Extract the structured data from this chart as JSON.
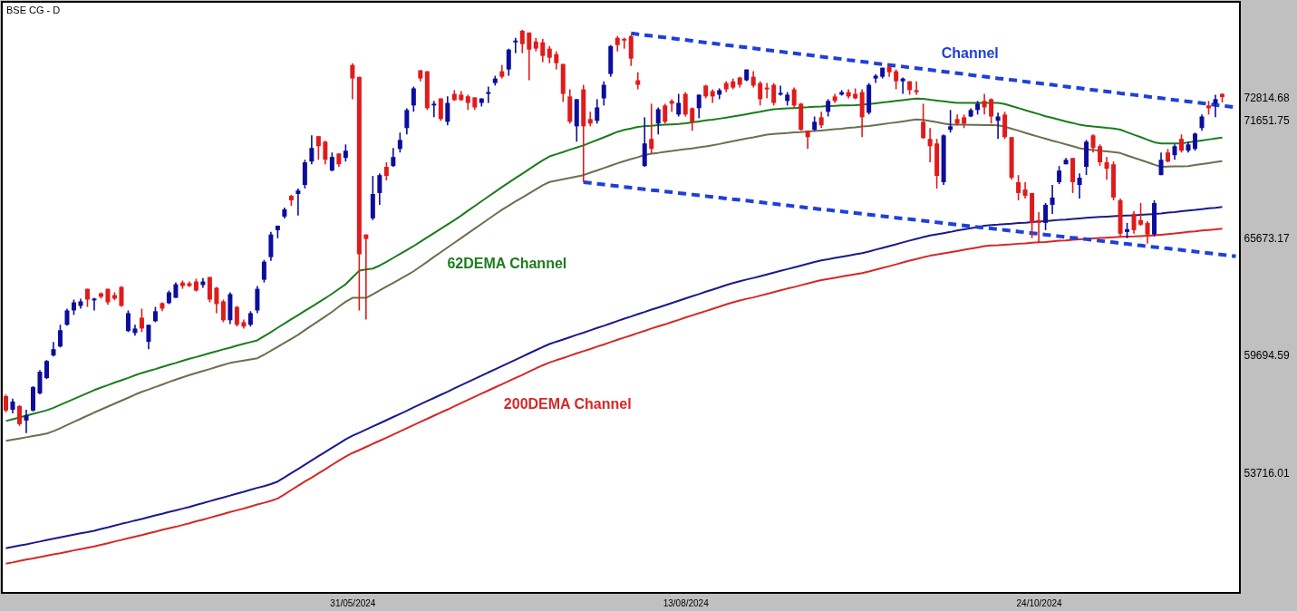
{
  "chart_data": {
    "type": "candlestick",
    "title": "BSE CG - D",
    "annotations": [
      "Channel",
      "62DEMA Channel",
      "200DEMA Channel"
    ],
    "categories": [
      null,
      null,
      null,
      null,
      null,
      null,
      null,
      null,
      null,
      null,
      null,
      null,
      null,
      null,
      null,
      null,
      null,
      null,
      null,
      null,
      null,
      null,
      null,
      null,
      null,
      null,
      null,
      null,
      null,
      null,
      null,
      null,
      null,
      null,
      null,
      null,
      null,
      null,
      null,
      null,
      null,
      null,
      null,
      null,
      null,
      null,
      null,
      null,
      null,
      null,
      null,
      "31/05/2024",
      null,
      null,
      null,
      null,
      null,
      null,
      null,
      null,
      null,
      null,
      null,
      null,
      null,
      null,
      null,
      null,
      null,
      null,
      null,
      null,
      null,
      null,
      null,
      null,
      null,
      null,
      null,
      null,
      null,
      null,
      null,
      null,
      null,
      null,
      null,
      null,
      null,
      null,
      null,
      null,
      null,
      null,
      null,
      null,
      null,
      null,
      null,
      null,
      "13/08/2024",
      null,
      null,
      null,
      null,
      null,
      null,
      null,
      null,
      null,
      null,
      null,
      null,
      null,
      null,
      null,
      null,
      null,
      null,
      null,
      null,
      null,
      null,
      null,
      null,
      null,
      null,
      null,
      null,
      null,
      null,
      null,
      null,
      null,
      null,
      null,
      null,
      null,
      null,
      null,
      null,
      null,
      null,
      null,
      null,
      null,
      null,
      null,
      null,
      null,
      null,
      null,
      "24/10/2024",
      null,
      null,
      null,
      null,
      null,
      null,
      null,
      null,
      null,
      null,
      null,
      null,
      null,
      null,
      null,
      null,
      null,
      null,
      null,
      null,
      null,
      null,
      null,
      null,
      null,
      null,
      null,
      null,
      null
    ],
    "ohlc": [
      [
        57610,
        57700,
        56790,
        56880
      ],
      [
        56920,
        57480,
        56740,
        57340
      ],
      [
        57110,
        57150,
        56100,
        56190
      ],
      [
        56370,
        56920,
        55730,
        56650
      ],
      [
        56880,
        58120,
        56830,
        58070
      ],
      [
        57750,
        58940,
        57700,
        58850
      ],
      [
        58530,
        59450,
        58480,
        59400
      ],
      [
        59680,
        60370,
        59630,
        60000
      ],
      [
        60140,
        61240,
        60090,
        60960
      ],
      [
        61240,
        62060,
        61190,
        61970
      ],
      [
        61970,
        62520,
        61740,
        62380
      ],
      [
        62200,
        62570,
        62060,
        62430
      ],
      [
        63070,
        63070,
        62150,
        62520
      ],
      [
        62480,
        62610,
        61970,
        62570
      ],
      [
        62840,
        62890,
        62570,
        62660
      ],
      [
        63070,
        63070,
        62250,
        62380
      ],
      [
        62750,
        62890,
        62480,
        62570
      ],
      [
        63160,
        63210,
        62150,
        62200
      ],
      [
        60920,
        61970,
        60870,
        61830
      ],
      [
        60820,
        61240,
        60690,
        61050
      ],
      [
        61600,
        62060,
        60870,
        61050
      ],
      [
        60370,
        61240,
        60000,
        61240
      ],
      [
        61420,
        62150,
        61370,
        61930
      ],
      [
        62340,
        62380,
        61930,
        62060
      ],
      [
        62340,
        62980,
        62290,
        62890
      ],
      [
        62610,
        63390,
        62610,
        63300
      ],
      [
        63390,
        63490,
        63070,
        63210
      ],
      [
        63350,
        63440,
        63160,
        63210
      ],
      [
        63440,
        63580,
        62930,
        62980
      ],
      [
        63260,
        63620,
        63120,
        63440
      ],
      [
        63670,
        63670,
        62380,
        62520
      ],
      [
        63120,
        63160,
        61830,
        62290
      ],
      [
        62430,
        62520,
        61370,
        61470
      ],
      [
        61470,
        62890,
        61280,
        62800
      ],
      [
        62150,
        62200,
        61150,
        61240
      ],
      [
        61370,
        61510,
        61050,
        61150
      ],
      [
        61240,
        61930,
        61150,
        61830
      ],
      [
        61970,
        63210,
        61830,
        63070
      ],
      [
        63530,
        64540,
        63390,
        64450
      ],
      [
        64680,
        65960,
        64490,
        65830
      ],
      [
        66050,
        66280,
        65640,
        66280
      ],
      [
        66740,
        67200,
        66650,
        67110
      ],
      [
        67800,
        67840,
        67290,
        67570
      ],
      [
        67890,
        68170,
        66790,
        68070
      ],
      [
        68350,
        69630,
        68170,
        69500
      ],
      [
        69540,
        70870,
        69400,
        70230
      ],
      [
        70830,
        70830,
        69630,
        70320
      ],
      [
        70550,
        70600,
        69400,
        69630
      ],
      [
        69080,
        70000,
        69040,
        69770
      ],
      [
        69950,
        69950,
        69270,
        69400
      ],
      [
        69720,
        70410,
        69540,
        70090
      ],
      [
        74450,
        74540,
        72710,
        73760
      ],
      [
        73850,
        73850,
        61970,
        64820
      ],
      [
        65830,
        65830,
        61510,
        65600
      ],
      [
        66650,
        68810,
        66560,
        67890
      ],
      [
        67940,
        68940,
        67340,
        68850
      ],
      [
        69270,
        69500,
        68580,
        68810
      ],
      [
        69310,
        70230,
        69270,
        69770
      ],
      [
        70180,
        71010,
        70000,
        70640
      ],
      [
        71240,
        72250,
        70920,
        72160
      ],
      [
        72390,
        73350,
        72070,
        73260
      ],
      [
        74180,
        74180,
        73620,
        73760
      ],
      [
        74130,
        74130,
        72160,
        72250
      ],
      [
        72390,
        72620,
        71790,
        72480
      ],
      [
        72750,
        72750,
        71610,
        71700
      ],
      [
        71560,
        72850,
        71380,
        72520
      ],
      [
        72980,
        73170,
        72620,
        72660
      ],
      [
        72940,
        73120,
        72620,
        72660
      ],
      [
        72850,
        72940,
        72160,
        72520
      ],
      [
        72800,
        72800,
        72160,
        72290
      ],
      [
        72520,
        72750,
        72340,
        72750
      ],
      [
        72980,
        73350,
        72520,
        73070
      ],
      [
        73530,
        73900,
        73400,
        73760
      ],
      [
        74130,
        74450,
        73760,
        73850
      ],
      [
        74220,
        75280,
        73900,
        75230
      ],
      [
        75600,
        75830,
        75050,
        75690
      ],
      [
        76190,
        76240,
        75050,
        75510
      ],
      [
        76100,
        76100,
        73670,
        75230
      ],
      [
        75640,
        75830,
        75140,
        75280
      ],
      [
        75600,
        75780,
        74590,
        74910
      ],
      [
        75280,
        75410,
        74540,
        74820
      ],
      [
        75000,
        75140,
        74220,
        74540
      ],
      [
        74500,
        74500,
        72570,
        72980
      ],
      [
        72850,
        73210,
        71470,
        71560
      ],
      [
        71330,
        72710,
        70550,
        72710
      ],
      [
        73210,
        73440,
        68490,
        71330
      ],
      [
        71700,
        72070,
        71330,
        71470
      ],
      [
        71610,
        72710,
        71470,
        72290
      ],
      [
        72750,
        73620,
        72390,
        73440
      ],
      [
        73990,
        75460,
        73850,
        75410
      ],
      [
        75830,
        75920,
        75140,
        75460
      ],
      [
        75780,
        75830,
        75280,
        75690
      ],
      [
        75920,
        75970,
        74400,
        74770
      ],
      [
        73670,
        74080,
        73210,
        73440
      ],
      [
        69310,
        71790,
        69270,
        70460
      ],
      [
        70690,
        72480,
        69950,
        70180
      ],
      [
        71470,
        72290,
        70920,
        72200
      ],
      [
        72390,
        72480,
        71470,
        71560
      ],
      [
        72620,
        72710,
        72070,
        72480
      ],
      [
        71930,
        72980,
        71830,
        72520
      ],
      [
        72980,
        73070,
        71830,
        71930
      ],
      [
        72250,
        72290,
        71100,
        71560
      ],
      [
        72250,
        72940,
        71740,
        72940
      ],
      [
        73400,
        73440,
        72750,
        72850
      ],
      [
        73120,
        73210,
        72520,
        72850
      ],
      [
        72940,
        73260,
        72710,
        73170
      ],
      [
        73530,
        73620,
        73070,
        73210
      ],
      [
        73620,
        73760,
        73210,
        73300
      ],
      [
        73810,
        73850,
        73300,
        73440
      ],
      [
        73670,
        74220,
        73620,
        74220
      ],
      [
        73850,
        74130,
        73300,
        73400
      ],
      [
        73530,
        73620,
        72390,
        72710
      ],
      [
        73300,
        73530,
        72750,
        73210
      ],
      [
        73440,
        73530,
        72390,
        72520
      ],
      [
        72940,
        73400,
        72890,
        73030
      ],
      [
        72620,
        73070,
        72390,
        72940
      ],
      [
        73210,
        73300,
        72290,
        72390
      ],
      [
        72480,
        72520,
        71100,
        71150
      ],
      [
        71100,
        71100,
        70180,
        70780
      ],
      [
        71150,
        71830,
        71100,
        71560
      ],
      [
        71790,
        72070,
        71240,
        71380
      ],
      [
        72070,
        72710,
        71830,
        72620
      ],
      [
        72850,
        72980,
        72520,
        72620
      ],
      [
        72940,
        73170,
        72890,
        73070
      ],
      [
        73070,
        73210,
        72750,
        72850
      ],
      [
        72980,
        73260,
        72710,
        72750
      ],
      [
        73070,
        73210,
        70780,
        71790
      ],
      [
        72020,
        73530,
        71930,
        73440
      ],
      [
        73760,
        73990,
        73530,
        73900
      ],
      [
        73850,
        74310,
        73760,
        74310
      ],
      [
        74360,
        74400,
        73850,
        74080
      ],
      [
        74130,
        74220,
        73210,
        73620
      ],
      [
        73620,
        73810,
        72980,
        73760
      ],
      [
        73620,
        73620,
        72940,
        73170
      ],
      [
        73170,
        73620,
        72940,
        73070
      ],
      [
        71560,
        72480,
        70690,
        70730
      ],
      [
        70690,
        71240,
        69500,
        70320
      ],
      [
        70460,
        70690,
        68170,
        68810
      ],
      [
        68490,
        70920,
        68350,
        70870
      ],
      [
        71150,
        72160,
        71010,
        71330
      ],
      [
        71700,
        71930,
        71380,
        71470
      ],
      [
        71790,
        71930,
        71240,
        71470
      ],
      [
        71830,
        72250,
        71790,
        72160
      ],
      [
        72160,
        72620,
        71930,
        72480
      ],
      [
        72620,
        72980,
        71930,
        72290
      ],
      [
        72710,
        72750,
        71470,
        71830
      ],
      [
        71610,
        72020,
        70690,
        71830
      ],
      [
        71930,
        72070,
        70690,
        70780
      ],
      [
        70780,
        70780,
        68620,
        68720
      ],
      [
        68490,
        68850,
        67570,
        67940
      ],
      [
        68120,
        68490,
        67660,
        67800
      ],
      [
        67940,
        67940,
        65640,
        66420
      ],
      [
        66560,
        66970,
        65410,
        66420
      ],
      [
        66420,
        67430,
        66050,
        67340
      ],
      [
        67340,
        68350,
        66880,
        67710
      ],
      [
        68490,
        69310,
        68390,
        69080
      ],
      [
        69400,
        69720,
        69400,
        69630
      ],
      [
        69720,
        69720,
        67940,
        68490
      ],
      [
        68350,
        68940,
        67660,
        68720
      ],
      [
        69270,
        70640,
        68850,
        70550
      ],
      [
        70870,
        70920,
        70000,
        70230
      ],
      [
        70320,
        70410,
        69310,
        69500
      ],
      [
        69500,
        69770,
        68620,
        69170
      ],
      [
        69400,
        69540,
        67570,
        67710
      ],
      [
        67570,
        67660,
        65730,
        65870
      ],
      [
        65960,
        66420,
        65640,
        66100
      ],
      [
        66880,
        67020,
        65870,
        66050
      ],
      [
        66560,
        67430,
        66280,
        66330
      ],
      [
        66420,
        66510,
        65370,
        65830
      ],
      [
        65830,
        67570,
        65730,
        67430
      ],
      [
        68850,
        70000,
        68850,
        69630
      ],
      [
        70000,
        70180,
        69500,
        69540
      ],
      [
        69860,
        70410,
        69630,
        70320
      ],
      [
        70690,
        70920,
        70000,
        70090
      ],
      [
        70090,
        70550,
        70000,
        70410
      ],
      [
        70180,
        71010,
        70090,
        70960
      ],
      [
        71240,
        71930,
        71100,
        71830
      ],
      [
        72390,
        72620,
        71930,
        72250
      ],
      [
        72480,
        72940,
        71790,
        72710
      ],
      [
        72980,
        73000,
        72540,
        72814.68
      ],
      null,
      null
    ],
    "colors": [
      "#e01b1b",
      "#0d0d9c",
      "#e01b1b",
      "#0d0d9c",
      "#0d0d9c",
      "#0d0d9c",
      "#0d0d9c",
      "#0d0d9c",
      "#0d0d9c",
      "#0d0d9c",
      "#0d0d9c",
      "#0d0d9c",
      "#e01b1b",
      "#0d0d9c",
      "#e01b1b",
      "#e01b1b",
      "#e01b1b",
      "#e01b1b",
      "#0d0d9c",
      "#0d0d9c",
      "#e01b1b",
      "#0d0d9c",
      "#0d0d9c",
      "#e01b1b",
      "#0d0d9c",
      "#0d0d9c",
      "#e01b1b",
      "#e01b1b",
      "#e01b1b",
      "#0d0d9c",
      "#e01b1b",
      "#e01b1b",
      "#e01b1b",
      "#0d0d9c",
      "#e01b1b",
      "#e01b1b",
      "#0d0d9c",
      "#0d0d9c",
      "#0d0d9c",
      "#0d0d9c",
      "#0d0d9c",
      "#0d0d9c",
      "#e01b1b",
      "#0d0d9c",
      "#0d0d9c",
      "#0d0d9c",
      "#e01b1b",
      "#e01b1b",
      "#0d0d9c",
      "#e01b1b",
      "#0d0d9c",
      "#e01b1b",
      "#e01b1b",
      "#e01b1b",
      "#0d0d9c",
      "#0d0d9c",
      "#e01b1b",
      "#0d0d9c",
      "#0d0d9c",
      "#0d0d9c",
      "#0d0d9c",
      "#e01b1b",
      "#e01b1b",
      "#0d0d9c",
      "#e01b1b",
      "#0d0d9c",
      "#e01b1b",
      "#e01b1b",
      "#e01b1b",
      "#e01b1b",
      "#0d0d9c",
      "#0d0d9c",
      "#0d0d9c",
      "#e01b1b",
      "#0d0d9c",
      "#0d0d9c",
      "#e01b1b",
      "#e01b1b",
      "#e01b1b",
      "#e01b1b",
      "#e01b1b",
      "#e01b1b",
      "#e01b1b",
      "#e01b1b",
      "#0d0d9c",
      "#e01b1b",
      "#e01b1b",
      "#0d0d9c",
      "#0d0d9c",
      "#0d0d9c",
      "#e01b1b",
      "#e01b1b",
      "#e01b1b",
      "#e01b1b",
      "#0d0d9c",
      "#e01b1b",
      "#0d0d9c",
      "#e01b1b",
      "#e01b1b",
      "#0d0d9c",
      "#e01b1b",
      "#e01b1b",
      "#0d0d9c",
      "#e01b1b",
      "#e01b1b",
      "#0d0d9c",
      "#e01b1b",
      "#e01b1b",
      "#e01b1b",
      "#0d0d9c",
      "#e01b1b",
      "#e01b1b",
      "#e01b1b",
      "#e01b1b",
      "#0d0d9c",
      "#0d0d9c",
      "#e01b1b",
      "#e01b1b",
      "#e01b1b",
      "#0d0d9c",
      "#e01b1b",
      "#0d0d9c",
      "#e01b1b",
      "#0d0d9c",
      "#e01b1b",
      "#e01b1b",
      "#e01b1b",
      "#0d0d9c",
      "#0d0d9c",
      "#0d0d9c",
      "#e01b1b",
      "#e01b1b",
      "#0d0d9c",
      "#e01b1b",
      "#e01b1b",
      "#e01b1b",
      "#e01b1b",
      "#e01b1b",
      "#0d0d9c",
      "#0d0d9c",
      "#e01b1b",
      "#e01b1b",
      "#0d0d9c",
      "#0d0d9c",
      "#e01b1b",
      "#e01b1b",
      "#0d0d9c",
      "#e01b1b",
      "#e01b1b",
      "#e01b1b",
      "#e01b1b",
      "#e01b1b",
      "#e01b1b",
      "#0d0d9c",
      "#0d0d9c",
      "#0d0d9c",
      "#0d0d9c",
      "#e01b1b",
      "#0d0d9c",
      "#0d0d9c",
      "#e01b1b",
      "#e01b1b",
      "#e01b1b",
      "#e01b1b",
      "#e01b1b",
      "#0d0d9c",
      "#e01b1b",
      "#e01b1b",
      "#e01b1b",
      "#0d0d9c",
      "#0d0d9c",
      "#e01b1b",
      "#0d0d9c",
      "#e01b1b",
      "#0d0d9c",
      "#0d0d9c",
      "#0d0d9c",
      "#e01b1b",
      "#0d0d9c",
      "#e01b1b",
      null,
      null
    ],
    "series": [
      {
        "type": "line",
        "color": "#1c7c1c",
        "values": [
          56350,
          56440,
          56530,
          56620,
          56710,
          56800,
          56890,
          57020,
          57170,
          57320,
          57470,
          57620,
          57770,
          57920,
          58050,
          58170,
          58300,
          58420,
          58540,
          58670,
          58790,
          58890,
          58990,
          59100,
          59200,
          59300,
          59410,
          59510,
          59600,
          59700,
          59800,
          59890,
          59990,
          60080,
          60180,
          60270,
          60360,
          60450,
          60660,
          60870,
          61090,
          61300,
          61520,
          61730,
          61950,
          62160,
          62380,
          62590,
          62820,
          63060,
          63300,
          63650,
          63990,
          64050,
          64100,
          64250,
          64440,
          64640,
          64840,
          65040,
          65240,
          65460,
          65680,
          65900,
          66120,
          66340,
          66560,
          66790,
          67040,
          67280,
          67520,
          67760,
          68000,
          68240,
          68470,
          68700,
          68920,
          69150,
          69380,
          69600,
          69800,
          69910,
          70020,
          70140,
          70250,
          70360,
          70500,
          70630,
          70770,
          70910,
          71050,
          71150,
          71220,
          71300,
          71340,
          71360,
          71390,
          71410,
          71430,
          71450,
          71480,
          71530,
          71580,
          71630,
          71670,
          71720,
          71770,
          71830,
          71890,
          71950,
          72010,
          72070,
          72140,
          72200,
          72220,
          72240,
          72260,
          72280,
          72300,
          72330,
          72340,
          72360,
          72370,
          72390,
          72400,
          72410,
          72430,
          72460,
          72500,
          72540,
          72580,
          72620,
          72660,
          72700,
          72740,
          72730,
          72680,
          72640,
          72600,
          72560,
          72520,
          72520,
          72520,
          72520,
          72520,
          72520,
          72520,
          72460,
          72360,
          72260,
          72150,
          72050,
          71950,
          71840,
          71760,
          71670,
          71580,
          71500,
          71410,
          71360,
          71320,
          71290,
          71250,
          71220,
          71160,
          71030,
          70900,
          70780,
          70650,
          70520,
          70460,
          70460,
          70460,
          70460,
          70510,
          70560,
          70610,
          70660,
          70710,
          70760,
          null,
          null
        ]
      },
      {
        "type": "line",
        "color": "#6e6e50",
        "values": [
          55340,
          55400,
          55460,
          55520,
          55580,
          55640,
          55710,
          55830,
          55980,
          56140,
          56300,
          56460,
          56620,
          56780,
          56930,
          57080,
          57230,
          57380,
          57530,
          57690,
          57830,
          57950,
          58080,
          58200,
          58330,
          58450,
          58570,
          58680,
          58790,
          58890,
          58990,
          59100,
          59200,
          59300,
          59360,
          59420,
          59480,
          59540,
          59720,
          59920,
          60120,
          60320,
          60520,
          60730,
          60970,
          61200,
          61430,
          61660,
          61900,
          62160,
          62410,
          62610,
          62610,
          62610,
          62790,
          62990,
          63180,
          63370,
          63560,
          63760,
          63960,
          64200,
          64440,
          64690,
          64930,
          65170,
          65410,
          65650,
          65890,
          66130,
          66370,
          66610,
          66850,
          67090,
          67300,
          67510,
          67710,
          67920,
          68130,
          68330,
          68500,
          68570,
          68640,
          68710,
          68780,
          68850,
          68970,
          69090,
          69210,
          69330,
          69450,
          69560,
          69660,
          69760,
          69870,
          69940,
          69980,
          70030,
          70080,
          70120,
          70170,
          70210,
          70260,
          70310,
          70370,
          70430,
          70500,
          70570,
          70640,
          70710,
          70770,
          70840,
          70910,
          70940,
          70970,
          70990,
          71020,
          71040,
          71070,
          71090,
          71120,
          71150,
          71180,
          71210,
          71250,
          71280,
          71320,
          71350,
          71390,
          71440,
          71490,
          71530,
          71580,
          71630,
          71680,
          71660,
          71600,
          71540,
          71470,
          71420,
          71420,
          71410,
          71400,
          71400,
          71390,
          71390,
          71380,
          71310,
          71210,
          71110,
          71000,
          70900,
          70800,
          70700,
          70600,
          70510,
          70410,
          70320,
          70220,
          70160,
          70130,
          70090,
          70060,
          70020,
          69970,
          69850,
          69730,
          69620,
          69500,
          69380,
          69270,
          69280,
          69290,
          69300,
          69310,
          69360,
          69410,
          69460,
          69510,
          69560,
          null,
          null
        ]
      },
      {
        "type": "line",
        "color": "#1a1a8c",
        "values": [
          49880,
          49950,
          50020,
          50080,
          50150,
          50220,
          50290,
          50360,
          50430,
          50500,
          50570,
          50640,
          50700,
          50770,
          50860,
          50940,
          51030,
          51120,
          51200,
          51290,
          51370,
          51460,
          51550,
          51630,
          51720,
          51800,
          51890,
          51980,
          52080,
          52170,
          52270,
          52370,
          52460,
          52560,
          52660,
          52750,
          52850,
          52950,
          53040,
          53140,
          53270,
          53480,
          53700,
          53910,
          54130,
          54340,
          54560,
          54770,
          54990,
          55200,
          55420,
          55600,
          55750,
          55910,
          56070,
          56230,
          56390,
          56550,
          56710,
          56870,
          57040,
          57200,
          57360,
          57520,
          57680,
          57840,
          58010,
          58170,
          58330,
          58490,
          58650,
          58820,
          58980,
          59140,
          59300,
          59460,
          59620,
          59790,
          59950,
          60110,
          60260,
          60380,
          60490,
          60610,
          60730,
          60840,
          60960,
          61080,
          61190,
          61310,
          61430,
          61550,
          61660,
          61780,
          61890,
          62010,
          62120,
          62230,
          62350,
          62460,
          62580,
          62690,
          62800,
          62920,
          63030,
          63140,
          63260,
          63360,
          63450,
          63540,
          63620,
          63710,
          63800,
          63890,
          63980,
          64070,
          64160,
          64250,
          64340,
          64430,
          64510,
          64570,
          64640,
          64700,
          64760,
          64820,
          64880,
          64960,
          65060,
          65150,
          65240,
          65330,
          65430,
          65520,
          65610,
          65700,
          65780,
          65840,
          65900,
          65960,
          66030,
          66090,
          66150,
          66210,
          66280,
          66310,
          66330,
          66360,
          66380,
          66410,
          66430,
          66460,
          66490,
          66510,
          66540,
          66570,
          66590,
          66620,
          66650,
          66680,
          66700,
          66720,
          66740,
          66760,
          66780,
          66800,
          66810,
          66830,
          66850,
          66870,
          66900,
          66940,
          66970,
          67010,
          67050,
          67080,
          67120,
          67160,
          67190,
          67230,
          null,
          null
        ]
      },
      {
        "type": "line",
        "color": "#d62828",
        "values": [
          49100,
          49160,
          49230,
          49300,
          49360,
          49430,
          49500,
          49570,
          49630,
          49700,
          49770,
          49830,
          49900,
          49970,
          50050,
          50130,
          50220,
          50300,
          50390,
          50470,
          50550,
          50640,
          50720,
          50810,
          50890,
          50970,
          51060,
          51150,
          51250,
          51330,
          51430,
          51530,
          51620,
          51720,
          51810,
          51900,
          52000,
          52100,
          52190,
          52290,
          52410,
          52620,
          52840,
          53050,
          53270,
          53470,
          53690,
          53900,
          54120,
          54330,
          54540,
          54720,
          54870,
          55030,
          55190,
          55340,
          55500,
          55660,
          55820,
          55980,
          56140,
          56300,
          56460,
          56620,
          56780,
          56930,
          57100,
          57260,
          57420,
          57580,
          57740,
          57900,
          58060,
          58220,
          58380,
          58540,
          58690,
          58860,
          59020,
          59180,
          59320,
          59440,
          59550,
          59670,
          59790,
          59900,
          60010,
          60130,
          60240,
          60360,
          60480,
          60590,
          60700,
          60820,
          60930,
          61050,
          61160,
          61260,
          61380,
          61490,
          61610,
          61720,
          61830,
          61940,
          62050,
          62160,
          62280,
          62380,
          62470,
          62560,
          62630,
          62720,
          62810,
          62900,
          62990,
          63080,
          63160,
          63250,
          63340,
          63430,
          63510,
          63570,
          63630,
          63690,
          63750,
          63810,
          63870,
          63950,
          64040,
          64130,
          64220,
          64310,
          64410,
          64500,
          64580,
          64670,
          64750,
          64810,
          64870,
          64930,
          64990,
          65050,
          65110,
          65170,
          65240,
          65270,
          65280,
          65310,
          65330,
          65360,
          65380,
          65410,
          65430,
          65450,
          65480,
          65510,
          65530,
          65560,
          65590,
          65610,
          65630,
          65650,
          65670,
          65690,
          65710,
          65720,
          65730,
          65750,
          65770,
          65790,
          65820,
          65850,
          65880,
          65920,
          65960,
          65990,
          66030,
          66060,
          66090,
          66130,
          null,
          null
        ]
      },
      {
        "type": "line",
        "color": "#1f40d8",
        "line_style": "dashed",
        "values": [
          null,
          null,
          null,
          null,
          null,
          null,
          null,
          null,
          null,
          null,
          null,
          null,
          null,
          null,
          null,
          null,
          null,
          null,
          null,
          null,
          null,
          null,
          null,
          null,
          null,
          null,
          null,
          null,
          null,
          null,
          null,
          null,
          null,
          null,
          null,
          null,
          null,
          null,
          null,
          null,
          null,
          null,
          null,
          null,
          null,
          null,
          null,
          null,
          null,
          null,
          null,
          null,
          null,
          null,
          null,
          null,
          null,
          null,
          null,
          null,
          null,
          null,
          null,
          null,
          null,
          null,
          null,
          null,
          null,
          null,
          null,
          null,
          null,
          null,
          null,
          null,
          null,
          null,
          null,
          null,
          null,
          null,
          null,
          null,
          null,
          null,
          null,
          null,
          null,
          null,
          null,
          null,
          76060,
          76010,
          75970,
          75930,
          75890,
          75850,
          75800,
          75760,
          75720,
          75680,
          75630,
          75590,
          75550,
          75510,
          75460,
          75420,
          75380,
          75340,
          75300,
          75250,
          75210,
          75170,
          75130,
          75080,
          75040,
          75000,
          74960,
          74920,
          74870,
          74830,
          74790,
          74750,
          74700,
          74660,
          74620,
          74580,
          74530,
          74490,
          74450,
          74410,
          74370,
          74320,
          74280,
          74240,
          74200,
          74150,
          74110,
          74070,
          74030,
          73990,
          73940,
          73900,
          73860,
          73820,
          73770,
          73730,
          73690,
          73650,
          73600,
          73560,
          73520,
          73480,
          73440,
          73390,
          73350,
          73310,
          73270,
          73220,
          73180,
          73140,
          73100,
          73060,
          73010,
          72970,
          72930,
          72890,
          72840,
          72800,
          72760,
          72720,
          72670,
          72630,
          72590,
          72550,
          72510,
          72460,
          72420,
          72380,
          72340,
          72290
        ]
      },
      {
        "type": "line",
        "color": "#1f40d8",
        "line_style": "dashed",
        "values": [
          null,
          null,
          null,
          null,
          null,
          null,
          null,
          null,
          null,
          null,
          null,
          null,
          null,
          null,
          null,
          null,
          null,
          null,
          null,
          null,
          null,
          null,
          null,
          null,
          null,
          null,
          null,
          null,
          null,
          null,
          null,
          null,
          null,
          null,
          null,
          null,
          null,
          null,
          null,
          null,
          null,
          null,
          null,
          null,
          null,
          null,
          null,
          null,
          null,
          null,
          null,
          null,
          null,
          null,
          null,
          null,
          null,
          null,
          null,
          null,
          null,
          null,
          null,
          null,
          null,
          null,
          null,
          null,
          null,
          null,
          null,
          null,
          null,
          null,
          null,
          null,
          null,
          null,
          null,
          null,
          null,
          null,
          null,
          null,
          null,
          68490,
          68450,
          68410,
          68370,
          68330,
          68290,
          68250,
          68210,
          68170,
          68130,
          68090,
          68060,
          68020,
          67980,
          67940,
          67900,
          67860,
          67820,
          67780,
          67740,
          67700,
          67660,
          67620,
          67590,
          67550,
          67510,
          67470,
          67430,
          67390,
          67350,
          67310,
          67270,
          67230,
          67190,
          67150,
          67110,
          67080,
          67040,
          67000,
          66960,
          66920,
          66880,
          66840,
          66800,
          66760,
          66720,
          66680,
          66640,
          66610,
          66570,
          66530,
          66490,
          66450,
          66410,
          66370,
          66330,
          66290,
          66250,
          66210,
          66170,
          66140,
          66100,
          66060,
          66020,
          65980,
          65940,
          65900,
          65860,
          65820,
          65780,
          65740,
          65700,
          65660,
          65630,
          65590,
          65550,
          65510,
          65470,
          65430,
          65390,
          65350,
          65310,
          65270,
          65230,
          65190,
          65160,
          65120,
          65080,
          65040,
          65000,
          64960,
          64920,
          64880,
          64840,
          64800,
          64760,
          64720
        ]
      }
    ],
    "ylim": [
      47610,
      77660
    ],
    "yticks": [
      53716.01,
      59694.59,
      65673.17,
      71651.75,
      72814.68
    ]
  }
}
